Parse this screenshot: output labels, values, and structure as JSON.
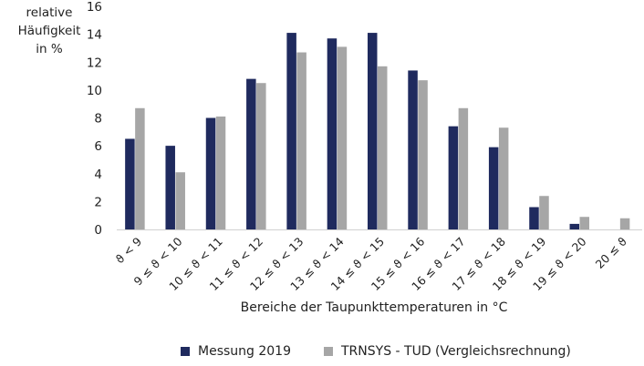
{
  "chart_data": {
    "type": "bar",
    "ylabel": "relative\nHäufigkeit\nin %",
    "xlabel": "Bereiche der Taupunkttemperaturen  in °C",
    "ylim": [
      0,
      16
    ],
    "yticks": [
      0,
      2,
      4,
      6,
      8,
      10,
      12,
      14,
      16
    ],
    "categories": [
      "ϑ < 9",
      "9 ≤ ϑ < 10",
      "10 ≤ ϑ < 11",
      "11 ≤ ϑ < 12",
      "12 ≤ ϑ < 13",
      "13 ≤ ϑ < 14",
      "14 ≤ ϑ < 15",
      "15 ≤ ϑ < 16",
      "16 ≤ ϑ < 17",
      "17 ≤ ϑ < 18",
      "18 ≤ ϑ < 19",
      "19 ≤ ϑ < 20",
      "20 ≤ ϑ"
    ],
    "series": [
      {
        "name": "Messung 2019",
        "color": "#1f2a5e",
        "values": [
          6.5,
          6.0,
          8.0,
          10.8,
          14.1,
          13.7,
          14.1,
          11.4,
          7.4,
          5.9,
          1.6,
          0.4,
          0.0
        ]
      },
      {
        "name": "TRNSYS - TUD (Vergleichsrechnung)",
        "color": "#a6a6a6",
        "values": [
          8.7,
          4.1,
          8.1,
          10.5,
          12.7,
          13.1,
          11.7,
          10.7,
          8.7,
          7.3,
          2.4,
          0.9,
          0.8
        ]
      }
    ],
    "grid": false,
    "legend_position": "bottom"
  }
}
